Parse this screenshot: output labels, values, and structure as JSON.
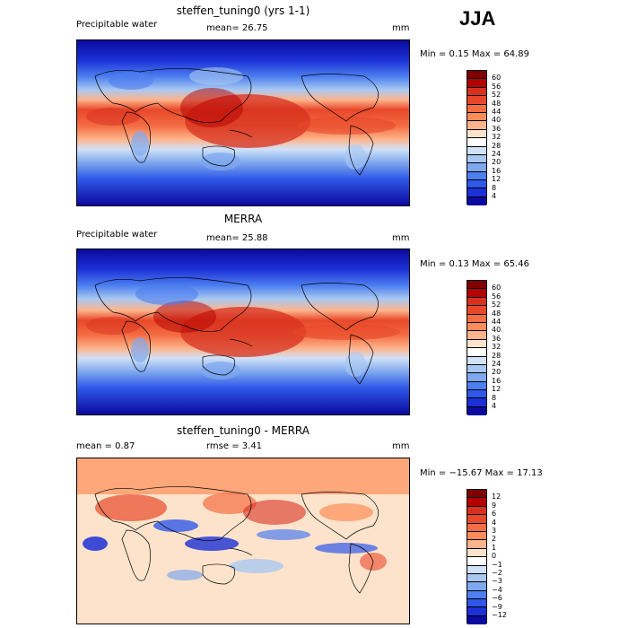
{
  "season": "JJA",
  "panels": [
    {
      "id": "model",
      "title": "steffen_tuning0 (yrs 1-1)",
      "left_label": "Precipitable water",
      "mid_label": "mean=  26.75",
      "units": "mm",
      "minmax": "Min =   0.15 Max =  64.89",
      "colorbar": {
        "labels": [
          "60",
          "56",
          "52",
          "48",
          "44",
          "40",
          "36",
          "32",
          "28",
          "24",
          "20",
          "16",
          "12",
          "8",
          "4"
        ],
        "colors": [
          "#7f0000",
          "#b30000",
          "#d7301f",
          "#e8482a",
          "#f46d43",
          "#fc8d59",
          "#fdb48c",
          "#fee3cc",
          "#ffffff",
          "#d0e1f8",
          "#a9c8f1",
          "#7fa8ee",
          "#4d7ff0",
          "#2f58e8",
          "#1c30d6",
          "#0a0a9e"
        ]
      },
      "chart_data": {
        "type": "heatmap",
        "title": "steffen_tuning0 (yrs 1-1)",
        "variable": "Precipitable water",
        "units": "mm",
        "season": "JJA",
        "mean": 26.75,
        "min": 0.15,
        "max": 64.89,
        "levels": [
          4,
          8,
          12,
          16,
          20,
          24,
          28,
          32,
          36,
          40,
          44,
          48,
          52,
          56,
          60
        ]
      }
    },
    {
      "id": "obs",
      "title": "MERRA",
      "left_label": "Precipitable water",
      "mid_label": "mean=  25.88",
      "units": "mm",
      "minmax": "Min =   0.13 Max =  65.46",
      "colorbar": {
        "labels": [
          "60",
          "56",
          "52",
          "48",
          "44",
          "40",
          "36",
          "32",
          "28",
          "24",
          "20",
          "16",
          "12",
          "8",
          "4"
        ],
        "colors": [
          "#7f0000",
          "#b30000",
          "#d7301f",
          "#e8482a",
          "#f46d43",
          "#fc8d59",
          "#fdb48c",
          "#fee3cc",
          "#ffffff",
          "#d0e1f8",
          "#a9c8f1",
          "#7fa8ee",
          "#4d7ff0",
          "#2f58e8",
          "#1c30d6",
          "#0a0a9e"
        ]
      },
      "chart_data": {
        "type": "heatmap",
        "title": "MERRA",
        "variable": "Precipitable water",
        "units": "mm",
        "season": "JJA",
        "mean": 25.88,
        "min": 0.13,
        "max": 65.46,
        "levels": [
          4,
          8,
          12,
          16,
          20,
          24,
          28,
          32,
          36,
          40,
          44,
          48,
          52,
          56,
          60
        ]
      }
    },
    {
      "id": "diff",
      "title": "steffen_tuning0 - MERRA",
      "left_label": "mean =   0.87",
      "mid_label": "rmse =   3.41",
      "units": "mm",
      "minmax": "Min = −15.67 Max =  17.13",
      "colorbar": {
        "labels": [
          "12",
          "9",
          "6",
          "4",
          "3",
          "2",
          "1",
          "0",
          "−1",
          "−2",
          "−3",
          "−4",
          "−6",
          "−9",
          "−12"
        ],
        "colors": [
          "#7f0000",
          "#b30000",
          "#d7301f",
          "#e8482a",
          "#f46d43",
          "#fc8d59",
          "#fdb48c",
          "#fee3cc",
          "#ffffff",
          "#d0e1f8",
          "#a9c8f1",
          "#7fa8ee",
          "#4d7ff0",
          "#2f58e8",
          "#1c30d6",
          "#0a0a9e"
        ]
      },
      "chart_data": {
        "type": "heatmap",
        "title": "steffen_tuning0 - MERRA",
        "units": "mm",
        "season": "JJA",
        "mean": 0.87,
        "rmse": 3.41,
        "min": -15.67,
        "max": 17.13,
        "levels": [
          -12,
          -9,
          -6,
          -4,
          -3,
          -2,
          -1,
          0,
          1,
          2,
          3,
          4,
          6,
          9,
          12
        ]
      }
    }
  ]
}
